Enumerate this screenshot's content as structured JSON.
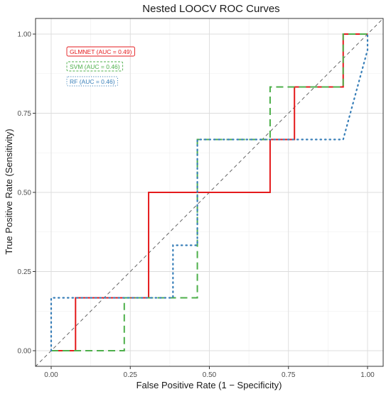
{
  "chart_data": {
    "type": "line",
    "title": "Nested LOOCV ROC Curves",
    "xlabel": "False Positive Rate (1 − Specificity)",
    "ylabel": "True Positive Rate (Sensitivity)",
    "xlim": [
      0,
      1
    ],
    "ylim": [
      0,
      1
    ],
    "x_ticks": [
      "0.00",
      "0.25",
      "0.50",
      "0.75",
      "1.00"
    ],
    "y_ticks": [
      "0.00",
      "0.25",
      "0.50",
      "0.75",
      "1.00"
    ],
    "grid": true,
    "legend_position": "top-left",
    "reference_line": {
      "x": [
        0,
        1
      ],
      "y": [
        0,
        1
      ],
      "style": "dashed",
      "color": "#555555"
    },
    "series": [
      {
        "name": "GLMNET (AUC = 0.49)",
        "color": "#e41a1c",
        "style": "solid",
        "x": [
          0,
          0.077,
          0.077,
          0.308,
          0.308,
          0.692,
          0.692,
          0.769,
          0.769,
          0.923,
          0.923,
          1
        ],
        "y": [
          0,
          0,
          0.167,
          0.167,
          0.5,
          0.5,
          0.667,
          0.667,
          0.833,
          0.833,
          1,
          1
        ]
      },
      {
        "name": "SVM (AUC = 0.46)",
        "color": "#4daf4a",
        "style": "dashed",
        "x": [
          0,
          0.231,
          0.231,
          0.462,
          0.462,
          0.692,
          0.692,
          0.923,
          0.923,
          1
        ],
        "y": [
          0,
          0,
          0.167,
          0.167,
          0.667,
          0.667,
          0.833,
          0.833,
          1,
          1
        ]
      },
      {
        "name": "RF (AUC = 0.46)",
        "color": "#377eb8",
        "style": "dotted",
        "x": [
          0,
          0,
          0.385,
          0.385,
          0.462,
          0.462,
          0.923,
          1,
          1
        ],
        "y": [
          0,
          0.167,
          0.167,
          0.333,
          0.333,
          0.667,
          0.667,
          0.95,
          1
        ]
      }
    ]
  }
}
